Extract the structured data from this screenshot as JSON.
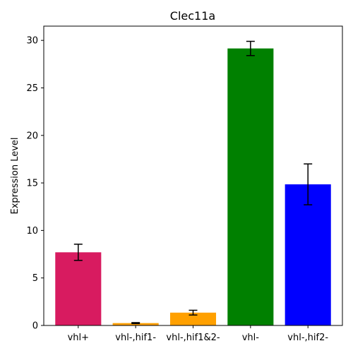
{
  "chart_data": {
    "type": "bar",
    "title": "Clec11a",
    "xlabel": "",
    "ylabel": "Expression Level",
    "categories": [
      "vhl+",
      "vhl-,hif1-",
      "vhl-,hif1&2-",
      "vhl-",
      "vhl-,hif2-"
    ],
    "values": [
      7.7,
      0.25,
      1.35,
      29.15,
      14.85
    ],
    "errors": [
      0.85,
      0.05,
      0.25,
      0.75,
      2.15
    ],
    "colors": [
      "#d81b60",
      "#ffa000",
      "#ffa000",
      "#008000",
      "#0000ff"
    ],
    "ylim": [
      0,
      31.5
    ],
    "yticks": [
      0,
      5,
      10,
      15,
      20,
      25,
      30
    ],
    "grid": false
  }
}
